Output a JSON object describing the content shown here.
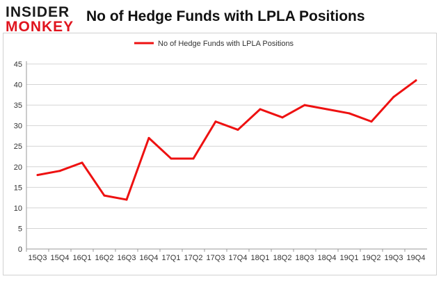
{
  "brand": {
    "line1": "INSIDER",
    "line2": "MONKEY"
  },
  "chart_data": {
    "type": "line",
    "title": "No of Hedge Funds with LPLA Positions",
    "xlabel": "",
    "ylabel": "",
    "categories": [
      "15Q3",
      "15Q4",
      "16Q1",
      "16Q2",
      "16Q3",
      "16Q4",
      "17Q1",
      "17Q2",
      "17Q3",
      "17Q4",
      "18Q1",
      "18Q2",
      "18Q3",
      "18Q4",
      "19Q1",
      "19Q2",
      "19Q3",
      "19Q4"
    ],
    "series": [
      {
        "name": "No of Hedge Funds with LPLA Positions",
        "values": [
          18,
          19,
          21,
          13,
          12,
          27,
          22,
          22,
          31,
          29,
          34,
          32,
          35,
          34,
          33,
          31,
          37,
          41
        ],
        "color": "#ee1111"
      }
    ],
    "ylim": [
      0,
      45
    ],
    "yticks": [
      "0",
      "5",
      "10",
      "15",
      "20",
      "25",
      "30",
      "35",
      "40",
      "45"
    ],
    "grid": true,
    "legend_position": "top-center"
  }
}
